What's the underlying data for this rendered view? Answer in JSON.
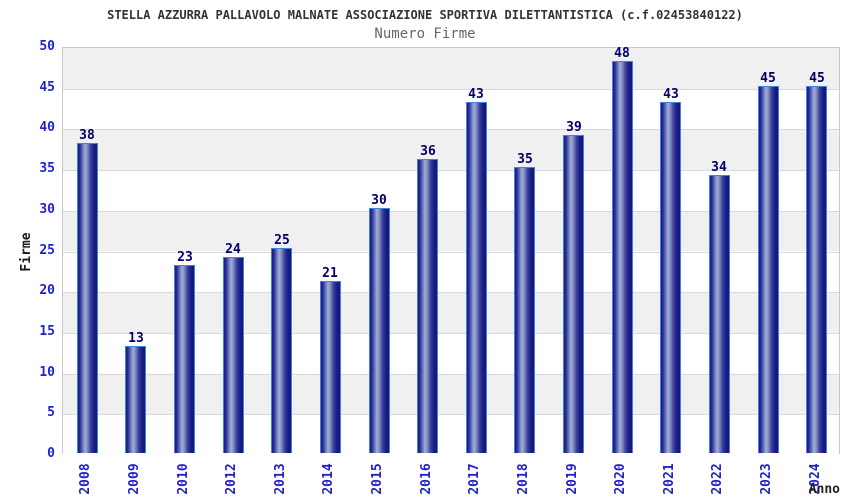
{
  "chart_data": {
    "type": "bar",
    "title": "STELLA AZZURRA PALLAVOLO MALNATE ASSOCIAZIONE SPORTIVA DILETTANTISTICA (c.f.02453840122)",
    "subtitle": "Numero Firme",
    "xlabel": "Anno",
    "ylabel": "Firme",
    "categories": [
      "2008",
      "2009",
      "2010",
      "2012",
      "2013",
      "2014",
      "2015",
      "2016",
      "2017",
      "2018",
      "2019",
      "2020",
      "2021",
      "2022",
      "2023",
      "2024"
    ],
    "values": [
      38,
      13,
      23,
      24,
      25,
      21,
      30,
      36,
      43,
      35,
      39,
      48,
      43,
      34,
      45,
      45
    ],
    "ylim": [
      0,
      50
    ],
    "ytick_step": 5,
    "yticks": [
      0,
      5,
      10,
      15,
      20,
      25,
      30,
      35,
      40,
      45,
      50
    ],
    "grid": true,
    "legend": false,
    "layout_hints": {
      "bands_alternating": true,
      "bar_labels_shown": true,
      "x_labels_rotated_90": true
    },
    "colors": {
      "bar_edge_dark": "#1a1a85",
      "bar_mid_light": "#a3aed8",
      "bar_border": "#3f82e0",
      "value_label": "#000066",
      "tick_label": "#2222cc",
      "axis_title": "#1a1a1a",
      "title": "#333333",
      "subtitle": "#666666",
      "band_gray": "#f0f0f0",
      "band_white": "#ffffff",
      "gridline": "#d9d9d9",
      "plot_border": "#c9c9c9",
      "background": "#ffffff"
    }
  }
}
